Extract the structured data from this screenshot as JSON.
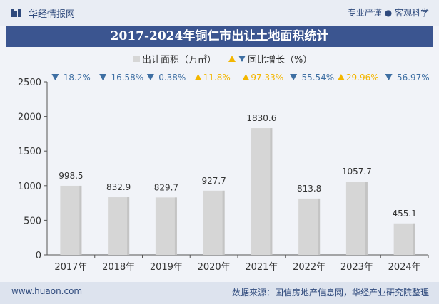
{
  "header": {
    "site_name": "华经情报网",
    "tagline": "专业严谨 ● 客观科学"
  },
  "footer": {
    "website": "www.huaon.com",
    "source": "数据来源：国信房地产信息网，华经产业研究院整理"
  },
  "colors": {
    "bar": "#d6d6d6",
    "title_band": "#3b5590",
    "down_arrow": "#3e6fa3",
    "up_arrow": "#f3b600",
    "value_text": "#333333"
  },
  "chart_data": {
    "type": "bar",
    "title": "2017-2024年铜仁市出让土地面积统计",
    "categories": [
      "2017年",
      "2018年",
      "2019年",
      "2020年",
      "2021年",
      "2022年",
      "2023年",
      "2024年"
    ],
    "series": [
      {
        "name": "出让面积（万㎡）",
        "values": [
          998.5,
          832.9,
          829.7,
          927.7,
          1830.6,
          813.8,
          1057.7,
          455.1
        ],
        "labels": [
          "998.5",
          "832.9",
          "829.7",
          "927.7",
          "1830.6",
          "813.8",
          "1057.7",
          "455.1"
        ]
      },
      {
        "name": "同比增长（%）",
        "values": [
          -18.2,
          -16.58,
          -0.38,
          11.8,
          97.33,
          -55.54,
          29.96,
          -56.97
        ],
        "labels": [
          "-18.2%",
          "-16.58%",
          "-0.38%",
          "11.8%",
          "97.33%",
          "-55.54%",
          "29.96%",
          "-56.97%"
        ]
      }
    ],
    "legend": [
      "出让面积（万㎡）",
      "同比增长（%）"
    ],
    "legend_position": "top-center",
    "yticks": [
      "0",
      "500",
      "1000",
      "1500",
      "2000",
      "2500"
    ],
    "ylim": [
      0,
      2500
    ],
    "xlabel": "",
    "ylabel": "",
    "grid": false
  }
}
